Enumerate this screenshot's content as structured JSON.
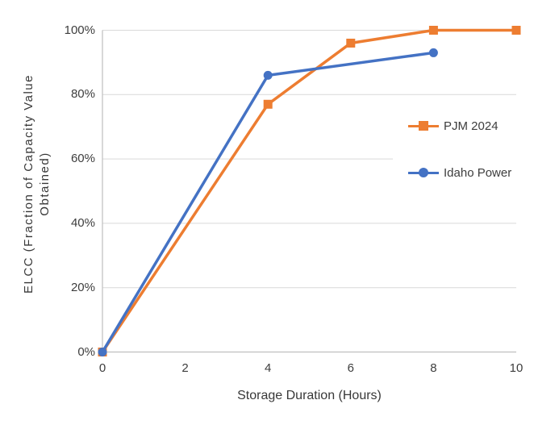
{
  "chart_data": {
    "type": "line",
    "title": "",
    "xlabel": "Storage Duration (Hours)",
    "ylabel": "ELCC (Fraction of Capacity Value Obtained)",
    "ylabel_lines": [
      "ELCC (Fraction of Capacity Value",
      "Obtained)"
    ],
    "xlim": [
      0,
      10
    ],
    "ylim": [
      0,
      100
    ],
    "y_unit": "percent",
    "grid": "horizontal",
    "legend_position": "inside-right",
    "x_ticks": [
      {
        "value": 0,
        "label": "0"
      },
      {
        "value": 2,
        "label": "2"
      },
      {
        "value": 4,
        "label": "4"
      },
      {
        "value": 6,
        "label": "6"
      },
      {
        "value": 8,
        "label": "8"
      },
      {
        "value": 10,
        "label": "10"
      }
    ],
    "y_ticks": [
      {
        "value": 0,
        "label": "0%"
      },
      {
        "value": 20,
        "label": "20%"
      },
      {
        "value": 40,
        "label": "40%"
      },
      {
        "value": 60,
        "label": "60%"
      },
      {
        "value": 80,
        "label": "80%"
      },
      {
        "value": 100,
        "label": "100%"
      }
    ],
    "series": [
      {
        "name": "PJM 2024",
        "color": "#ED7D31",
        "marker": "square",
        "x": [
          0,
          4,
          6,
          8,
          10
        ],
        "values": [
          0,
          77,
          96,
          100,
          100
        ]
      },
      {
        "name": "Idaho Power",
        "color": "#4472C4",
        "marker": "circle",
        "x": [
          0,
          4,
          8
        ],
        "values": [
          0,
          86,
          93
        ]
      }
    ],
    "colors": {
      "gridline": "#D9D9D9",
      "axis": "#BFBFBF",
      "text": "#3D3D3D",
      "background": "#FFFFFF"
    }
  }
}
